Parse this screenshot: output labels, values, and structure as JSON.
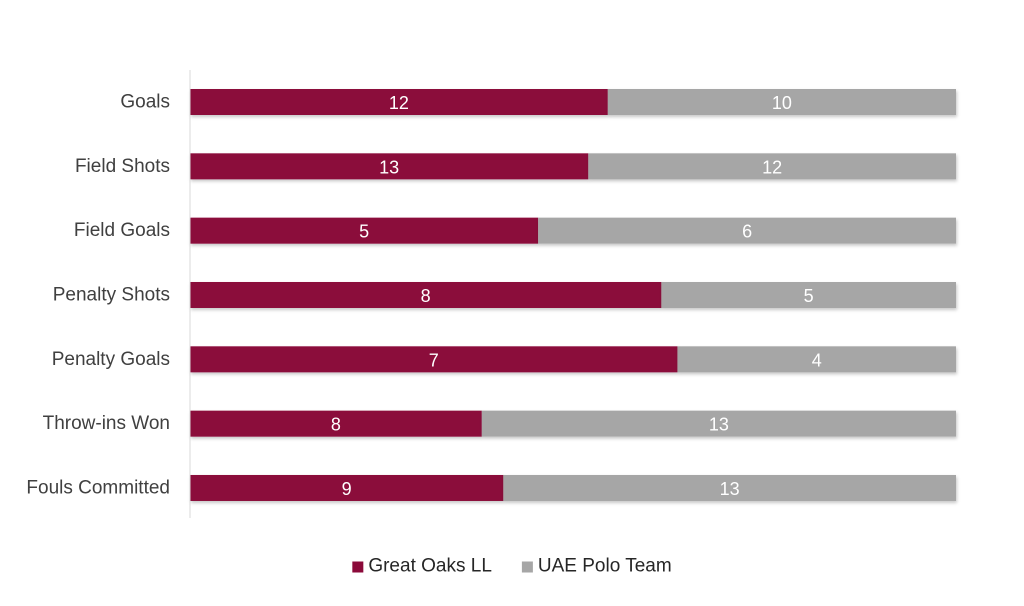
{
  "chart_data": {
    "type": "bar",
    "orientation": "horizontal",
    "stacked": "percent",
    "categories": [
      "Goals",
      "Field Shots",
      "Field Goals",
      "Penalty Shots",
      "Penalty Goals",
      "Throw-ins Won",
      "Fouls Committed"
    ],
    "series": [
      {
        "name": "Great Oaks LL",
        "values": [
          12,
          13,
          5,
          8,
          7,
          8,
          9
        ],
        "color": "#8B0A3A"
      },
      {
        "name": "UAE Polo Team",
        "values": [
          10,
          12,
          6,
          5,
          4,
          13,
          13
        ],
        "color": "#A6A6A6"
      }
    ],
    "xlim": [
      0,
      1
    ],
    "grid": false,
    "legend": "bottom",
    "data_labels": true
  }
}
